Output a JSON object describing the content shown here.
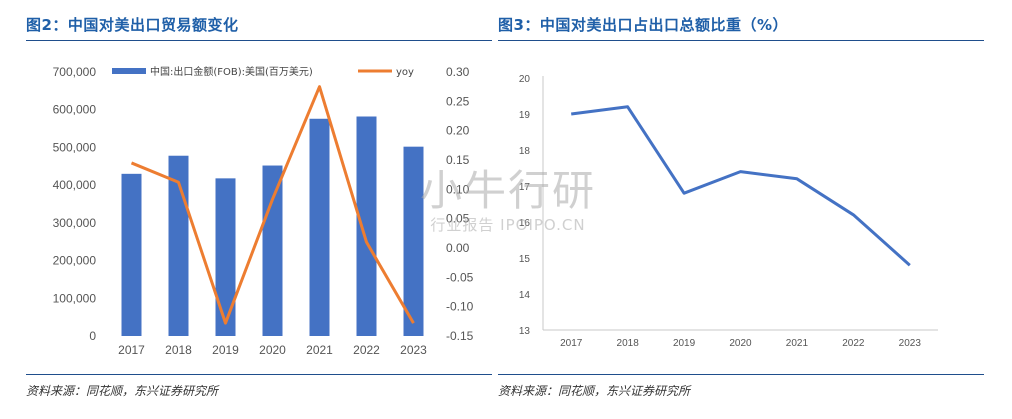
{
  "left": {
    "title": "图2：中国对美出口贸易额变化",
    "source": "资料来源：同花顺，东兴证券研究所"
  },
  "right": {
    "title": "图3：中国对美出口占出口总额比重（%）",
    "source": "资料来源：同花顺，东兴证券研究所"
  },
  "watermark": {
    "main": "小牛行研",
    "sub": "行业报告 IPOIPO.CN"
  },
  "colors": {
    "bar": "#4472c4",
    "yoy": "#ed7d31",
    "share": "#4472c4",
    "title": "#1f5fa8"
  },
  "chart_data": [
    {
      "type": "bar",
      "categories": [
        "2017",
        "2018",
        "2019",
        "2020",
        "2021",
        "2022",
        "2023"
      ],
      "series": [
        {
          "name": "中国:出口金额(FOB):美国(百万美元)",
          "type": "bar",
          "axis": "left",
          "values": [
            430000,
            478000,
            418000,
            452000,
            576000,
            582000,
            502000
          ]
        },
        {
          "name": "yoy",
          "type": "line",
          "axis": "right",
          "values": [
            0.145,
            0.112,
            -0.128,
            0.083,
            0.275,
            0.01,
            -0.128
          ]
        }
      ],
      "yticks_left": [
        "0",
        "100,000",
        "200,000",
        "300,000",
        "400,000",
        "500,000",
        "600,000",
        "700,000"
      ],
      "yticks_right": [
        "-0.15",
        "-0.10",
        "-0.05",
        "0.00",
        "0.05",
        "0.10",
        "0.15",
        "0.20",
        "0.25",
        "0.30"
      ],
      "ylim_left": [
        0,
        700000
      ],
      "ylim_right": [
        -0.15,
        0.3
      ],
      "legend": "top",
      "grid": false
    },
    {
      "type": "line",
      "categories": [
        "2017",
        "2018",
        "2019",
        "2020",
        "2021",
        "2022",
        "2023"
      ],
      "series": [
        {
          "values": [
            19.0,
            19.2,
            16.8,
            17.4,
            17.2,
            16.2,
            14.8
          ]
        }
      ],
      "yticks": [
        "13",
        "14",
        "15",
        "16",
        "17",
        "18",
        "19",
        "20"
      ],
      "ylim": [
        13,
        20
      ],
      "grid": false
    }
  ]
}
